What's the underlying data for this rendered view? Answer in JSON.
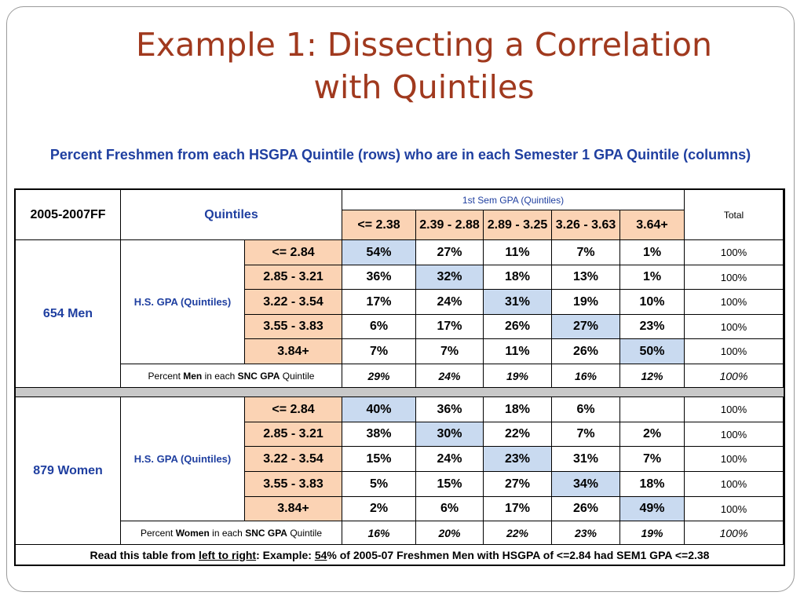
{
  "slide": {
    "title_line1": "Example 1: Dissecting a Correlation",
    "title_line2": "with Quintiles",
    "caption": "Percent Freshmen from each HSGPA Quintile (rows) who are in each Semester 1 GPA Quintile (columns)"
  },
  "table": {
    "corner": "2005-2007FF",
    "quintiles_label": "Quintiles",
    "sem_header": "1st Sem GPA (Quintiles)",
    "total_header": "Total",
    "columns": [
      "<= 2.38",
      "2.39 - 2.88",
      "2.89 - 3.25",
      "3.26 - 3.63",
      "3.64+"
    ],
    "hs_label": "H.S. GPA (Quintiles)",
    "rows_labels": [
      "<= 2.84",
      "2.85 - 3.21",
      "3.22 - 3.54",
      "3.55 - 3.83",
      "3.84+"
    ],
    "men": {
      "group": "654 Men",
      "rows": [
        [
          "54%",
          "27%",
          "11%",
          "7%",
          "1%",
          "100%"
        ],
        [
          "36%",
          "32%",
          "18%",
          "13%",
          "1%",
          "100%"
        ],
        [
          "17%",
          "24%",
          "31%",
          "19%",
          "10%",
          "100%"
        ],
        [
          "6%",
          "17%",
          "26%",
          "27%",
          "23%",
          "100%"
        ],
        [
          "7%",
          "7%",
          "11%",
          "26%",
          "50%",
          "100%"
        ]
      ],
      "summary_pre": "Percent ",
      "summary_bold": "Men",
      "summary_mid": " in each ",
      "summary_bold2": "SNC GPA",
      "summary_post": " Quintile",
      "summary_values": [
        "29%",
        "24%",
        "19%",
        "16%",
        "12%",
        "100%"
      ]
    },
    "women": {
      "group": "879 Women",
      "rows": [
        [
          "40%",
          "36%",
          "18%",
          "6%",
          "",
          "100%"
        ],
        [
          "38%",
          "30%",
          "22%",
          "7%",
          "2%",
          "100%"
        ],
        [
          "15%",
          "24%",
          "23%",
          "31%",
          "7%",
          "100%"
        ],
        [
          "5%",
          "15%",
          "27%",
          "34%",
          "18%",
          "100%"
        ],
        [
          "2%",
          "6%",
          "17%",
          "26%",
          "49%",
          "100%"
        ]
      ],
      "summary_pre": "Percent ",
      "summary_bold": "Women",
      "summary_mid": " in each ",
      "summary_bold2": "SNC GPA",
      "summary_post": " Quintile",
      "summary_values": [
        "16%",
        "20%",
        "22%",
        "23%",
        "19%",
        "100%"
      ]
    },
    "footer": {
      "p1": "Read this table from ",
      "p2": "left to right",
      "p3": ": Example: ",
      "p4": "54",
      "p5": "% of 2005-07 Freshmen Men with HSGPA of <=2.84 had SEM1 GPA <=2.38"
    },
    "colors": {
      "peach": "#fbd3b4",
      "highlight_blue": "#c9daf0",
      "header_blue": "#1f3fa0",
      "title_red": "#a0391e",
      "separator_gray": "#c8c8c8"
    }
  }
}
